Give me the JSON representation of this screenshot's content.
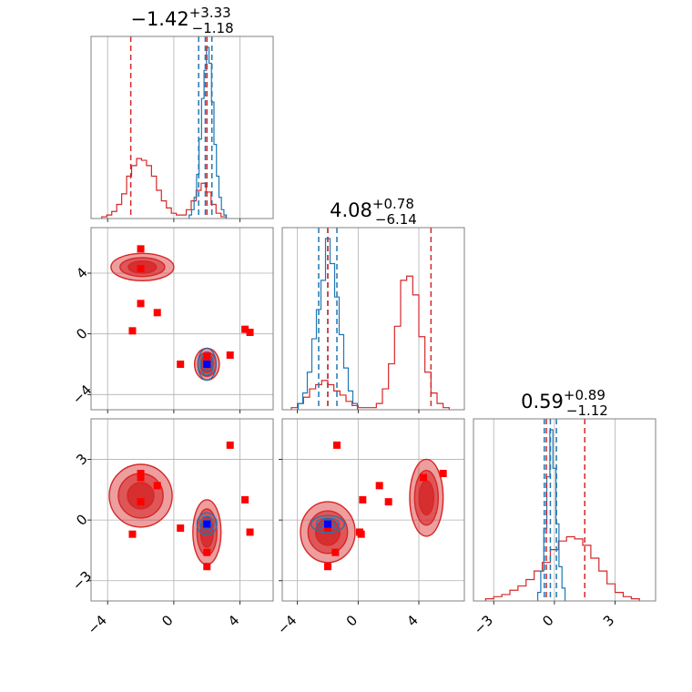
{
  "chart_data": {
    "type": "corner",
    "colors": {
      "dataset_a": "#d62728",
      "dataset_b": "#1f77b4",
      "truth": "#0000ff",
      "marker": "#ff0000",
      "grid": "#b0b0b0",
      "frame": "#808080"
    },
    "grid": true,
    "parameters": [
      {
        "range": [
          -5,
          6
        ],
        "ticks": [
          -4,
          0,
          4
        ],
        "tick_labels": [
          "−4",
          "0",
          "4"
        ]
      },
      {
        "range": [
          -5,
          7
        ],
        "ticks": [
          -4,
          0,
          4
        ],
        "tick_labels": [
          "−4",
          "0",
          "4"
        ]
      },
      {
        "range": [
          -4,
          5
        ],
        "ticks": [
          -3,
          0,
          3
        ],
        "tick_labels": [
          "−3",
          "0",
          "3"
        ]
      }
    ],
    "titles": [
      {
        "value": "−1.42",
        "plus": "+3.33",
        "minus": "−1.18"
      },
      {
        "value": "4.08",
        "plus": "+0.78",
        "minus": "−6.14"
      },
      {
        "value": "0.59",
        "plus": "+0.89",
        "minus": "−1.12"
      }
    ],
    "quantile_lines": {
      "dataset_a": [
        [
          -2.6,
          2.0
        ],
        [
          -2.0,
          4.8
        ],
        [
          -0.4,
          1.5
        ]
      ],
      "dataset_b": [
        [
          1.5,
          1.9,
          2.3
        ],
        [
          -2.6,
          -2.0,
          -1.4
        ],
        [
          -0.5,
          -0.2,
          0.1
        ]
      ]
    },
    "truth": [
      2.0,
      -2.0,
      -0.2
    ],
    "markers": [
      [
        -2.0,
        5.6,
        2.3
      ],
      [
        -2.0,
        4.3,
        2.1
      ],
      [
        -2.0,
        2.0,
        0.9
      ],
      [
        -2.5,
        0.2,
        -0.7
      ],
      [
        -1.0,
        1.4,
        1.7
      ],
      [
        0.4,
        -2.0,
        -0.4
      ],
      [
        2.0,
        -2.0,
        -2.3
      ],
      [
        3.4,
        -1.4,
        3.7
      ],
      [
        2.0,
        -1.5,
        -1.6
      ],
      [
        4.3,
        0.3,
        1.0
      ],
      [
        4.6,
        0.1,
        -0.6
      ]
    ],
    "histograms": {
      "dataset_a": [
        {
          "centers": [
            -4.2,
            -3.9,
            -3.6,
            -3.3,
            -3.0,
            -2.7,
            -2.4,
            -2.1,
            -1.8,
            -1.5,
            -1.2,
            -0.9,
            -0.6,
            -0.3,
            0.0,
            0.3,
            0.6,
            0.9,
            1.2,
            1.5,
            1.8,
            2.1,
            2.4,
            2.7,
            3.0
          ],
          "counts": [
            1,
            2,
            4,
            8,
            14,
            24,
            30,
            34,
            33,
            30,
            24,
            16,
            10,
            6,
            3,
            2,
            2,
            5,
            10,
            16,
            20,
            15,
            8,
            3,
            1
          ]
        },
        {
          "centers": [
            -4.2,
            -3.8,
            -3.4,
            -3.0,
            -2.6,
            -2.2,
            -1.8,
            -1.4,
            -1.0,
            -0.6,
            -0.2,
            0.2,
            0.6,
            1.0,
            1.4,
            1.8,
            2.2,
            2.6,
            3.0,
            3.4,
            3.8,
            4.2,
            4.6,
            5.0,
            5.4,
            5.8
          ],
          "counts": [
            1,
            3,
            6,
            10,
            12,
            14,
            12,
            9,
            7,
            4,
            2,
            1,
            1,
            1,
            3,
            10,
            22,
            40,
            62,
            64,
            55,
            35,
            18,
            8,
            3,
            1
          ]
        },
        {
          "centers": [
            -3.2,
            -2.8,
            -2.4,
            -2.0,
            -1.6,
            -1.2,
            -0.8,
            -0.4,
            0.0,
            0.4,
            0.8,
            1.2,
            1.6,
            2.0,
            2.4,
            2.8,
            3.2,
            3.6,
            4.0
          ],
          "counts": [
            1,
            2,
            3,
            5,
            7,
            10,
            14,
            18,
            24,
            28,
            30,
            29,
            26,
            20,
            14,
            8,
            4,
            2,
            1
          ]
        }
      ],
      "dataset_b": [
        {
          "centers": [
            1.0,
            1.15,
            1.3,
            1.45,
            1.6,
            1.75,
            1.9,
            2.05,
            2.2,
            2.35,
            2.5,
            2.65,
            2.8,
            2.95,
            3.1
          ],
          "counts": [
            2,
            5,
            12,
            25,
            45,
            68,
            84,
            97,
            88,
            66,
            42,
            24,
            12,
            5,
            2
          ]
        },
        {
          "centers": [
            -3.8,
            -3.5,
            -3.2,
            -2.9,
            -2.6,
            -2.3,
            -2.0,
            -1.7,
            -1.4,
            -1.1,
            -0.8,
            -0.5,
            -0.2
          ],
          "counts": [
            3,
            8,
            18,
            34,
            48,
            62,
            82,
            70,
            54,
            36,
            20,
            9,
            3
          ]
        },
        {
          "centers": [
            -0.75,
            -0.6,
            -0.45,
            -0.3,
            -0.15,
            0.0,
            0.15,
            0.3,
            0.45
          ],
          "counts": [
            4,
            14,
            34,
            58,
            80,
            62,
            36,
            16,
            6
          ]
        }
      ]
    },
    "contours": {
      "dataset_a": [
        {
          "panel": [
            1,
            0
          ],
          "center": [
            -1.9,
            4.4
          ],
          "radii": [
            [
              1.9,
              0.9
            ],
            [
              1.35,
              0.62
            ],
            [
              0.85,
              0.4
            ]
          ]
        },
        {
          "panel": [
            1,
            0
          ],
          "center": [
            2.0,
            -2.0
          ],
          "radii": [
            [
              0.75,
              1.05
            ],
            [
              0.55,
              0.8
            ],
            [
              0.35,
              0.55
            ]
          ]
        },
        {
          "panel": [
            2,
            0
          ],
          "center": [
            -2.0,
            1.2
          ],
          "radii": [
            [
              1.9,
              1.55
            ],
            [
              1.35,
              1.1
            ],
            [
              0.8,
              0.65
            ]
          ]
        },
        {
          "panel": [
            2,
            0
          ],
          "center": [
            2.0,
            -0.6
          ],
          "radii": [
            [
              0.85,
              1.6
            ],
            [
              0.6,
              1.15
            ],
            [
              0.38,
              0.75
            ]
          ]
        },
        {
          "panel": [
            2,
            1
          ],
          "center": [
            -2.0,
            -0.6
          ],
          "radii": [
            [
              1.8,
              1.5
            ],
            [
              1.3,
              1.05
            ],
            [
              0.8,
              0.65
            ]
          ]
        },
        {
          "panel": [
            2,
            1
          ],
          "center": [
            4.5,
            1.1
          ],
          "radii": [
            [
              1.1,
              1.9
            ],
            [
              0.78,
              1.35
            ],
            [
              0.48,
              0.85
            ]
          ]
        }
      ],
      "dataset_b": [
        {
          "panel": [
            1,
            0
          ],
          "center": [
            2.0,
            -2.0
          ],
          "radii": [
            [
              0.55,
              1.05
            ],
            [
              0.38,
              0.72
            ],
            [
              0.22,
              0.42
            ]
          ]
        },
        {
          "panel": [
            2,
            0
          ],
          "center": [
            2.0,
            -0.2
          ],
          "radii": [
            [
              0.6,
              0.55
            ],
            [
              0.42,
              0.38
            ],
            [
              0.25,
              0.22
            ]
          ]
        },
        {
          "panel": [
            2,
            1
          ],
          "center": [
            -2.0,
            -0.2
          ],
          "radii": [
            [
              1.1,
              0.42
            ],
            [
              0.75,
              0.3
            ],
            [
              0.45,
              0.18
            ]
          ]
        }
      ]
    }
  }
}
